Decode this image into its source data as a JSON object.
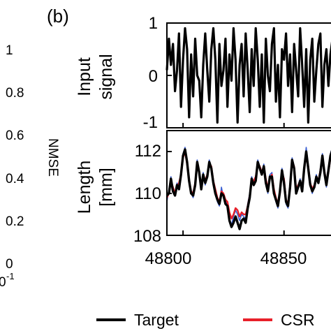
{
  "panel_label": "(b)",
  "left_axis": {
    "label": "NMSE",
    "ticks": [
      "1",
      "0.8",
      "0.6",
      "0.4",
      "0.2",
      "0"
    ],
    "x_tick_partial": "0",
    "x_tick_exp": "-1"
  },
  "legend": {
    "items": [
      {
        "label": "Target",
        "color": "#000000"
      },
      {
        "label": "CSR",
        "color": "#e8202a"
      }
    ]
  },
  "chart_data": [
    {
      "type": "line",
      "ylabel_lines": [
        "Input",
        "signal"
      ],
      "ylim": [
        -1,
        1
      ],
      "yticks": [
        "1",
        "0",
        "-1"
      ],
      "x_start": 48792,
      "x_step": 1,
      "series": [
        {
          "color": "#000000",
          "values": [
            0.1,
            0.7,
            0.2,
            0.6,
            -0.3,
            0.1,
            0.8,
            -0.6,
            0.3,
            0.9,
            0.5,
            -0.8,
            0.4,
            -0.4,
            0.7,
            0.0,
            -0.1,
            -0.8,
            0.2,
            0.8,
            0.1,
            -0.5,
            0.5,
            0.9,
            0.3,
            -0.9,
            0.6,
            -0.2,
            0.1,
            0.7,
            -0.6,
            0.4,
            -0.1,
            0.9,
            0.3,
            -0.9,
            0.2,
            0.6,
            -0.4,
            0.8,
            0.1,
            -0.7,
            0.5,
            -0.2,
            0.9,
            0.3,
            -0.6,
            0.4,
            -0.9,
            0.7,
            0.0,
            -0.3,
            0.6,
            0.9,
            -0.5,
            0.2,
            -0.8,
            0.5,
            0.3,
            0.8,
            -0.2,
            0.4,
            -0.7,
            0.6,
            0.1,
            -0.4,
            0.9,
            0.2,
            -0.6,
            0.5,
            -0.9,
            0.3,
            0.7,
            -0.5,
            0.1,
            0.6,
            0.8,
            -0.6,
            0.2,
            0.5,
            -0.2,
            0.4,
            0.7,
            0.1
          ]
        }
      ]
    },
    {
      "type": "line",
      "ylabel_lines": [
        "Length",
        "[mm]"
      ],
      "ylim": [
        108,
        113
      ],
      "yticks": [
        "112",
        "110",
        "108"
      ],
      "xlim": [
        48792,
        48875
      ],
      "xticks": [
        "48800",
        "48850"
      ],
      "x_start": 48792,
      "x_step": 1,
      "series": [
        {
          "color": "#3b5fd1",
          "values": [
            109.6,
            110.2,
            110.8,
            110.2,
            109.9,
            110.5,
            110.3,
            111.0,
            111.9,
            112.2,
            111.3,
            110.5,
            110.0,
            109.8,
            110.6,
            111.6,
            110.9,
            110.3,
            111.0,
            110.4,
            110.9,
            111.6,
            111.2,
            110.5,
            110.1,
            109.6,
            109.4,
            110.3,
            109.8,
            109.6,
            109.5,
            108.8,
            108.5,
            108.9,
            109.2,
            109.0,
            108.7,
            109.0,
            108.9,
            108.8,
            109.5,
            110.0,
            110.8,
            110.5,
            110.7,
            111.6,
            111.3,
            111.0,
            111.4,
            110.6,
            110.0,
            110.9,
            111.0,
            110.0,
            109.6,
            109.3,
            110.2,
            111.2,
            110.6,
            109.5,
            109.3,
            110.4,
            111.7,
            111.3,
            110.0,
            110.4,
            110.7,
            110.2,
            111.3,
            112.2,
            111.3,
            110.4,
            110.0,
            110.4,
            110.9,
            110.5,
            111.2,
            111.9,
            111.0,
            110.3,
            111.2,
            111.9,
            112.2,
            111.6,
            110.8
          ]
        },
        {
          "color": "#e8202a",
          "values": [
            109.8,
            110.0,
            110.6,
            110.3,
            110.0,
            110.3,
            110.5,
            110.9,
            111.7,
            112.0,
            111.4,
            110.6,
            110.1,
            110.0,
            110.5,
            111.4,
            111.0,
            110.4,
            110.8,
            110.6,
            110.9,
            111.4,
            111.3,
            110.6,
            110.2,
            109.8,
            109.6,
            110.1,
            110.0,
            109.7,
            109.6,
            109.1,
            108.8,
            109.0,
            109.3,
            109.2,
            108.9,
            109.1,
            109.0,
            109.0,
            109.4,
            109.9,
            110.6,
            110.6,
            110.8,
            111.4,
            111.3,
            111.0,
            111.3,
            110.7,
            110.2,
            110.7,
            110.9,
            110.2,
            109.8,
            109.5,
            110.0,
            111.0,
            110.7,
            109.7,
            109.5,
            110.2,
            111.5,
            111.3,
            110.2,
            110.4,
            110.6,
            110.3,
            111.1,
            111.9,
            111.3,
            110.5,
            110.2,
            110.4,
            110.8,
            110.6,
            111.1,
            111.7,
            111.1,
            110.5,
            111.0,
            111.7,
            112.0,
            111.6,
            110.9
          ]
        },
        {
          "color": "#000000",
          "values": [
            109.9,
            110.0,
            110.7,
            110.1,
            109.9,
            110.4,
            110.2,
            110.9,
            111.8,
            112.1,
            111.5,
            110.6,
            110.0,
            109.9,
            110.4,
            111.5,
            111.0,
            110.2,
            110.9,
            110.5,
            110.8,
            111.5,
            111.2,
            110.5,
            110.0,
            109.7,
            109.5,
            110.0,
            109.9,
            109.5,
            109.4,
            108.7,
            108.4,
            108.6,
            108.9,
            108.6,
            108.3,
            108.7,
            108.8,
            108.6,
            109.3,
            109.8,
            110.7,
            110.4,
            110.6,
            111.5,
            111.2,
            110.9,
            111.3,
            110.5,
            110.1,
            110.8,
            110.8,
            110.0,
            109.7,
            109.4,
            110.1,
            111.1,
            110.5,
            109.6,
            109.4,
            110.3,
            111.6,
            111.2,
            110.0,
            110.3,
            110.6,
            110.1,
            111.2,
            112.0,
            111.2,
            110.4,
            110.1,
            110.3,
            110.8,
            110.5,
            111.0,
            111.8,
            111.0,
            110.4,
            111.1,
            111.8,
            112.1,
            111.5,
            110.8
          ]
        }
      ]
    }
  ]
}
